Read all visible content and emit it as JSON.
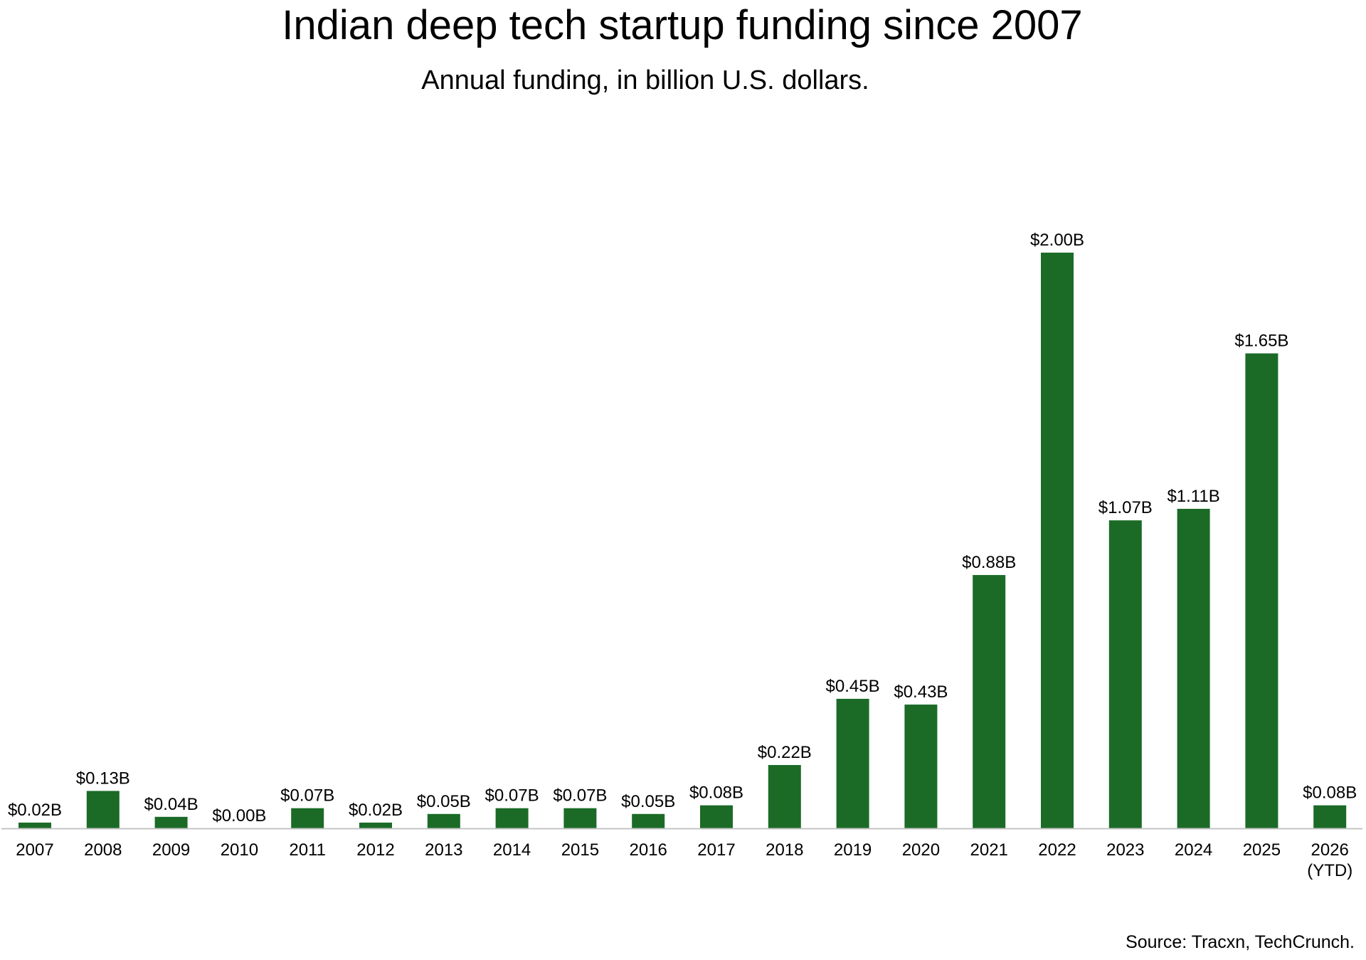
{
  "chart_data": {
    "type": "bar",
    "title": "Indian deep tech startup funding since 2007",
    "subtitle": "Annual funding, in billion U.S. dollars.",
    "source": "Source: Tracxn, TechCrunch.",
    "xlabel": "",
    "ylabel": "",
    "categories": [
      "2007",
      "2008",
      "2009",
      "2010",
      "2011",
      "2012",
      "2013",
      "2014",
      "2015",
      "2016",
      "2017",
      "2018",
      "2019",
      "2020",
      "2021",
      "2022",
      "2023",
      "2024",
      "2025",
      "2026\n(YTD)"
    ],
    "values": [
      0.02,
      0.13,
      0.04,
      0.0,
      0.07,
      0.02,
      0.05,
      0.07,
      0.07,
      0.05,
      0.08,
      0.22,
      0.45,
      0.43,
      0.88,
      2.0,
      1.07,
      1.11,
      1.65,
      0.08
    ],
    "data_labels": [
      "$0.02B",
      "$0.13B",
      "$0.04B",
      "$0.00B",
      "$0.07B",
      "$0.02B",
      "$0.05B",
      "$0.07B",
      "$0.07B",
      "$0.05B",
      "$0.08B",
      "$0.22B",
      "$0.45B",
      "$0.43B",
      "$0.88B",
      "$2.00B",
      "$1.07B",
      "$1.11B",
      "$1.65B",
      "$0.08B"
    ],
    "ylim": [
      0,
      2.0
    ],
    "grid": false,
    "y_axis_visible": false,
    "bar_color": "#1b6b27",
    "axis_color": "#c4c4c4"
  }
}
